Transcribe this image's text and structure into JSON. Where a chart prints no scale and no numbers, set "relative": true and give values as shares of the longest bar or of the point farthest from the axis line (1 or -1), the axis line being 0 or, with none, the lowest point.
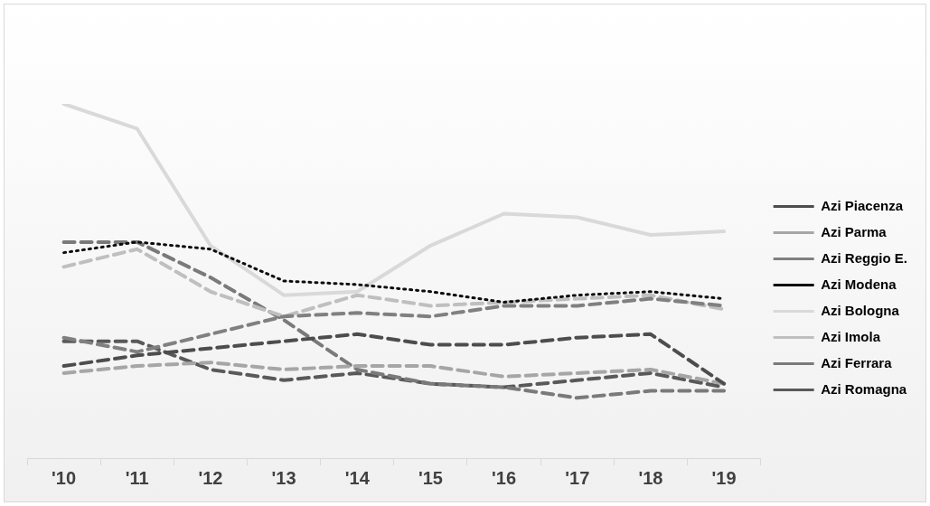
{
  "chart_data": {
    "type": "line",
    "relative": true,
    "categories": [
      "'10",
      "'11",
      "'12",
      "'13",
      "'14",
      "'15",
      "'16",
      "'17",
      "'18",
      "'19"
    ],
    "legend": "right",
    "grid": false,
    "marker": "none",
    "series": [
      {
        "name": "Azi Piacenza",
        "color": "#4d4d4d",
        "line_style": "dashed",
        "values": [
          0.26,
          0.29,
          0.31,
          0.33,
          0.35,
          0.32,
          0.32,
          0.34,
          0.35,
          0.21
        ]
      },
      {
        "name": "Azi Parma",
        "color": "#a6a6a6",
        "line_style": "dashed",
        "values": [
          0.24,
          0.26,
          0.27,
          0.25,
          0.26,
          0.26,
          0.23,
          0.24,
          0.25,
          0.21
        ]
      },
      {
        "name": "Azi Reggio E.",
        "color": "#808080",
        "line_style": "dashed",
        "values": [
          0.34,
          0.3,
          0.35,
          0.4,
          0.41,
          0.4,
          0.43,
          0.43,
          0.45,
          0.43
        ]
      },
      {
        "name": "Azi Modena",
        "color": "#0d0d0d",
        "line_style": "dotted",
        "values": [
          0.58,
          0.61,
          0.59,
          0.5,
          0.49,
          0.47,
          0.44,
          0.46,
          0.47,
          0.45
        ]
      },
      {
        "name": "Azi Bologna",
        "color": "#d9d9d9",
        "line_style": "solid",
        "values": [
          1,
          0.93,
          0.6,
          0.46,
          0.47,
          0.6,
          0.69,
          0.68,
          0.63,
          0.64
        ]
      },
      {
        "name": "Azi Imola",
        "color": "#bfbfbf",
        "line_style": "dashed",
        "values": [
          0.54,
          0.59,
          0.47,
          0.4,
          0.46,
          0.43,
          0.44,
          0.45,
          0.46,
          0.42
        ]
      },
      {
        "name": "Azi Ferrara",
        "color": "#7a7a7a",
        "line_style": "dashed",
        "values": [
          0.61,
          0.61,
          0.51,
          0.39,
          0.25,
          0.21,
          0.2,
          0.17,
          0.19,
          0.19
        ]
      },
      {
        "name": "Azi Romagna",
        "color": "#595959",
        "line_style": "dashed",
        "values": [
          0.33,
          0.33,
          0.25,
          0.22,
          0.24,
          0.21,
          0.2,
          0.22,
          0.24,
          0.2
        ]
      }
    ]
  }
}
